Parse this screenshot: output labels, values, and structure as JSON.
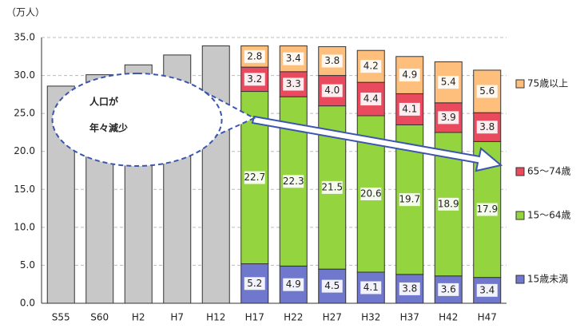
{
  "chart_data": {
    "type": "stacked_bar",
    "y_unit_label": "（万人）",
    "categories": [
      "S55",
      "S60",
      "H2",
      "H7",
      "H12",
      "H17",
      "H22",
      "H27",
      "H32",
      "H37",
      "H42",
      "H47"
    ],
    "series": [
      {
        "color": "#c8c8c8",
        "values": [
          28.6,
          30.1,
          31.4,
          32.7,
          33.9,
          null,
          null,
          null,
          null,
          null,
          null,
          null
        ]
      },
      {
        "name": "15歳未満",
        "color": "#6f78cc",
        "values": [
          null,
          null,
          null,
          null,
          null,
          5.2,
          4.9,
          4.5,
          4.1,
          3.8,
          3.6,
          3.4
        ],
        "value_labels": [
          null,
          null,
          null,
          null,
          null,
          "5.2",
          "4.9",
          "4.5",
          "4.1",
          "3.8",
          "3.6",
          "3.4"
        ]
      },
      {
        "name": "15～64歳",
        "color": "#94d43e",
        "values": [
          null,
          null,
          null,
          null,
          null,
          22.7,
          22.3,
          21.5,
          20.6,
          19.7,
          18.9,
          17.9
        ],
        "value_labels": [
          null,
          null,
          null,
          null,
          null,
          "22.7",
          "22.3",
          "21.5",
          "20.6",
          "19.7",
          "18.9",
          "17.9"
        ]
      },
      {
        "name": "65～74歳",
        "color": "#ea4a5e",
        "values": [
          null,
          null,
          null,
          null,
          null,
          3.2,
          3.3,
          4.0,
          4.4,
          4.1,
          3.9,
          3.8
        ],
        "value_labels": [
          null,
          null,
          null,
          null,
          null,
          "3.2",
          "3.3",
          "4.0",
          "4.4",
          "4.1",
          "3.9",
          "3.8"
        ]
      },
      {
        "name": "75歳以上",
        "color": "#ffbf7c",
        "values": [
          null,
          null,
          null,
          null,
          null,
          2.8,
          3.4,
          3.8,
          4.2,
          4.9,
          5.4,
          5.6
        ],
        "value_labels": [
          null,
          null,
          null,
          null,
          null,
          "2.8",
          "3.4",
          "3.8",
          "4.2",
          "4.9",
          "5.4",
          "5.6"
        ]
      }
    ],
    "ylim": [
      0,
      35
    ],
    "yticks": [
      {
        "value": 0,
        "label": "0.0"
      },
      {
        "value": 5,
        "label": "5.0"
      },
      {
        "value": 10,
        "label": "10.0"
      },
      {
        "value": 15,
        "label": "15.0"
      },
      {
        "value": 20,
        "label": "20.0"
      },
      {
        "value": 25,
        "label": "25.0"
      },
      {
        "value": 30,
        "label": "30.0"
      },
      {
        "value": 35,
        "label": "35.0"
      }
    ],
    "grid": true,
    "annotation": [
      "人口が",
      "年々減少"
    ]
  }
}
